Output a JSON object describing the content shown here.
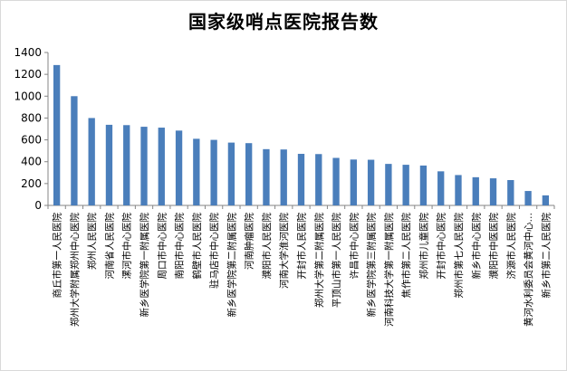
{
  "chart_data": {
    "type": "bar",
    "title": "国家级哨点医院报告数",
    "xlabel": "",
    "ylabel": "",
    "ylim": [
      0,
      1400
    ],
    "yticks": [
      0,
      200,
      400,
      600,
      800,
      1000,
      1200,
      1400
    ],
    "grid": false,
    "legend": "none",
    "bar_color": "#4a7ebb",
    "categories": [
      "商丘市第一人民医院",
      "郑州大学附属郑州中心医院",
      "郑州人民医院",
      "河南省人民医院",
      "漯河市中心医院",
      "新乡医学院第一附属医院",
      "周口市中心医院",
      "南阳市中心医院",
      "鹤壁市人民医院",
      "驻马店市中心医院",
      "新乡医学院第二附属医院",
      "河南肿瘤医院",
      "濮阳市人民医院",
      "河南大学淮河医院",
      "开封市人民医院",
      "郑州大学第二附属医院",
      "平顶山市第一人民医院",
      "许昌市中心医院",
      "新乡医学院第三附属医院",
      "河南科技大学第一附属医院",
      "焦作市第二人民医院",
      "郑州市儿童医院",
      "开封市中心医院",
      "郑州市第七人民医院",
      "新乡市中心医院",
      "濮阳市中医医院",
      "济源市人民医院",
      "黄河水利委员会黄河中心…",
      "新乡市第二人民医院"
    ],
    "values": [
      1285,
      1000,
      800,
      738,
      735,
      720,
      712,
      685,
      610,
      600,
      575,
      570,
      515,
      512,
      472,
      470,
      435,
      420,
      418,
      380,
      372,
      365,
      312,
      278,
      258,
      248,
      232,
      132,
      92
    ]
  }
}
